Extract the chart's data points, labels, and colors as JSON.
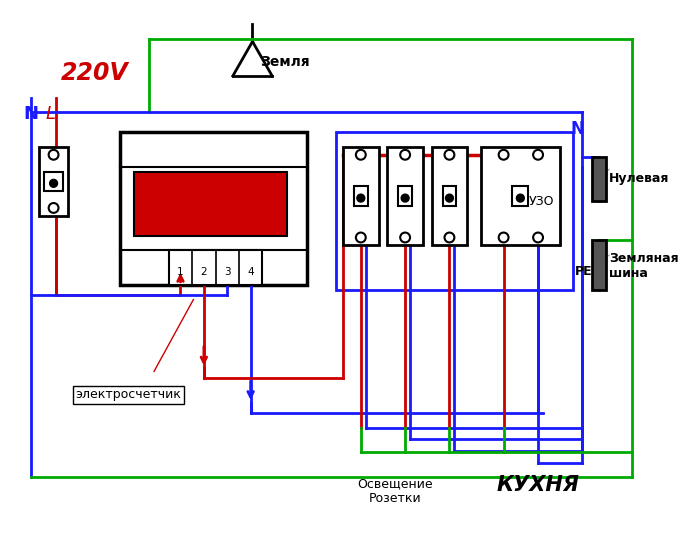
{
  "bg_color": "#ffffff",
  "text_220V": "220V",
  "text_N_left": "N",
  "text_L": "L",
  "text_zemlya": "Земля",
  "text_N_right": "N",
  "text_nulevaya": "Нулевая",
  "text_zemlanaya_shina": "Земляная\nшина",
  "text_PE": "PE",
  "text_UZO": "УЗО",
  "text_electroschetnik": "электросчетчик",
  "text_osveshenie": "Освещение\nРозетки",
  "text_kukhnya": "КУХНЯ",
  "color_red": "#cc0000",
  "color_blue": "#1a1aff",
  "color_green": "#00aa00",
  "color_black": "#000000"
}
